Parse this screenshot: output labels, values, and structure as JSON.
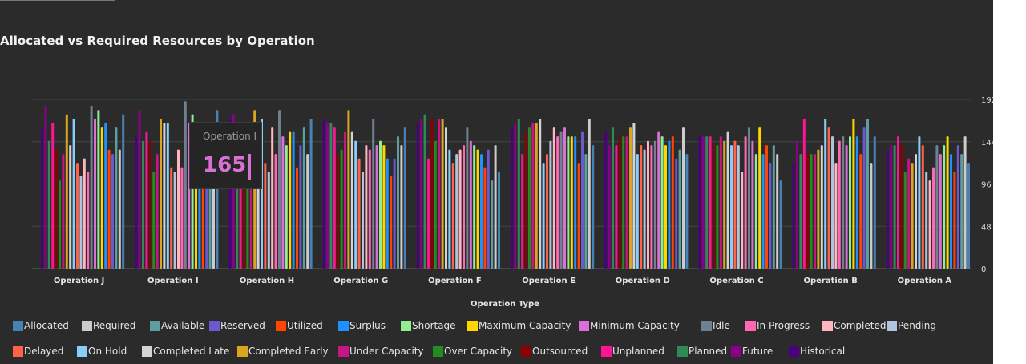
{
  "title": "Allocated vs Required Resources by Operation",
  "tooltip": {
    "label": "Operation I",
    "value": "165"
  },
  "colors": {
    "background": "#2b2b2b",
    "text": "#e6e6e6",
    "grid": "#444444",
    "tooltip_accent": "#d771d4"
  },
  "chart_data": {
    "type": "bar",
    "title": "Allocated vs Required Resources by Operation",
    "xlabel": "Operation Type",
    "ylabel": "",
    "ylim": [
      0,
      192
    ],
    "yticks": [
      0,
      48,
      96,
      144,
      192
    ],
    "grid": true,
    "legend_position": "bottom",
    "categories": [
      "Operation J",
      "Operation I",
      "Operation H",
      "Operation G",
      "Operation F",
      "Operation E",
      "Operation D",
      "Operation C",
      "Operation B",
      "Operation A"
    ],
    "series": [
      {
        "name": "Historical",
        "color": "#4b0082",
        "values": [
          160,
          150,
          170,
          170,
          165,
          160,
          155,
          150,
          120,
          135
        ]
      },
      {
        "name": "Future",
        "color": "#8b008b",
        "values": [
          185,
          180,
          175,
          165,
          170,
          165,
          140,
          150,
          145,
          140
        ]
      },
      {
        "name": "Planned",
        "color": "#2e8b57",
        "values": [
          145,
          145,
          160,
          165,
          175,
          170,
          160,
          150,
          130,
          140
        ]
      },
      {
        "name": "Unplanned",
        "color": "#ff1493",
        "values": [
          165,
          155,
          150,
          160,
          125,
          130,
          140,
          150,
          170,
          150
        ]
      },
      {
        "name": "Outsourced",
        "color": "#8b0000",
        "values": [
          135,
          145,
          140,
          130,
          170,
          155,
          150,
          140,
          130,
          140
        ]
      },
      {
        "name": "Over Capacity",
        "color": "#228b22",
        "values": [
          100,
          110,
          125,
          135,
          145,
          160,
          150,
          140,
          130,
          110
        ]
      },
      {
        "name": "Under Capacity",
        "color": "#c71585",
        "values": [
          130,
          130,
          130,
          155,
          170,
          165,
          150,
          150,
          130,
          125
        ]
      },
      {
        "name": "Completed Early",
        "color": "#daa520",
        "values": [
          175,
          170,
          180,
          180,
          170,
          165,
          160,
          145,
          135,
          120
        ]
      },
      {
        "name": "Completed Late",
        "color": "#d3d3d3",
        "values": [
          140,
          165,
          145,
          155,
          160,
          170,
          165,
          155,
          140,
          130
        ]
      },
      {
        "name": "On Hold",
        "color": "#87cefa",
        "values": [
          170,
          165,
          170,
          145,
          135,
          120,
          130,
          140,
          170,
          150
        ]
      },
      {
        "name": "Delayed",
        "color": "#ff6347",
        "values": [
          120,
          115,
          120,
          125,
          120,
          130,
          140,
          145,
          160,
          140
        ]
      },
      {
        "name": "Pending",
        "color": "#b0c4de",
        "values": [
          105,
          110,
          110,
          110,
          130,
          145,
          135,
          140,
          150,
          110
        ]
      },
      {
        "name": "Completed",
        "color": "#ffb6c1",
        "values": [
          125,
          135,
          160,
          140,
          135,
          160,
          145,
          110,
          120,
          100
        ]
      },
      {
        "name": "In Progress",
        "color": "#ff69b4",
        "values": [
          110,
          115,
          130,
          135,
          140,
          150,
          140,
          150,
          145,
          115
        ]
      },
      {
        "name": "Idle",
        "color": "#708090",
        "values": [
          185,
          190,
          180,
          170,
          160,
          155,
          145,
          160,
          150,
          140
        ]
      },
      {
        "name": "Minimum Capacity",
        "color": "#da70d6",
        "values": [
          170,
          165,
          150,
          140,
          145,
          160,
          155,
          145,
          140,
          130
        ]
      },
      {
        "name": "Shortage",
        "color": "#90ee90",
        "values": [
          180,
          175,
          140,
          145,
          140,
          150,
          150,
          130,
          150,
          140
        ]
      },
      {
        "name": "Maximum Capacity",
        "color": "#ffd700",
        "values": [
          160,
          160,
          155,
          140,
          135,
          150,
          140,
          160,
          170,
          150
        ]
      },
      {
        "name": "Surplus",
        "color": "#1e90ff",
        "values": [
          165,
          160,
          155,
          125,
          130,
          150,
          145,
          130,
          150,
          130
        ]
      },
      {
        "name": "Utilized",
        "color": "#ff4500",
        "values": [
          135,
          130,
          115,
          105,
          115,
          120,
          150,
          140,
          130,
          110
        ]
      },
      {
        "name": "Reserved",
        "color": "#6a5acd",
        "values": [
          130,
          125,
          140,
          125,
          135,
          155,
          125,
          120,
          160,
          140
        ]
      },
      {
        "name": "Available",
        "color": "#5f9ea0",
        "values": [
          160,
          150,
          160,
          150,
          100,
          130,
          135,
          140,
          170,
          130
        ]
      },
      {
        "name": "Required",
        "color": "#cccccc",
        "values": [
          135,
          140,
          130,
          140,
          140,
          170,
          160,
          130,
          120,
          150
        ]
      },
      {
        "name": "Allocated",
        "color": "#4682b4",
        "values": [
          175,
          180,
          170,
          160,
          110,
          140,
          130,
          100,
          150,
          120
        ]
      }
    ]
  },
  "legend_rows": [
    [
      {
        "name": "Allocated",
        "color": "#4682b4"
      },
      {
        "name": "Required",
        "color": "#cccccc"
      },
      {
        "name": "Available",
        "color": "#5f9ea0"
      },
      {
        "name": "Reserved",
        "color": "#6a5acd"
      },
      {
        "name": "Utilized",
        "color": "#ff4500"
      },
      {
        "name": "Surplus",
        "color": "#1e90ff"
      },
      {
        "name": "Shortage",
        "color": "#90ee90"
      },
      {
        "name": "Maximum Capacity",
        "color": "#ffd700"
      },
      {
        "name": "Minimum Capacity",
        "color": "#da70d6"
      },
      {
        "name": "Idle",
        "color": "#708090"
      },
      {
        "name": "In Progress",
        "color": "#ff69b4"
      },
      {
        "name": "Completed",
        "color": "#ffb6c1"
      },
      {
        "name": "Pending",
        "color": "#b0c4de"
      }
    ],
    [
      {
        "name": "Delayed",
        "color": "#ff6347"
      },
      {
        "name": "On Hold",
        "color": "#87cefa"
      },
      {
        "name": "Completed Late",
        "color": "#d3d3d3"
      },
      {
        "name": "Completed Early",
        "color": "#daa520"
      },
      {
        "name": "Under Capacity",
        "color": "#c71585"
      },
      {
        "name": "Over Capacity",
        "color": "#228b22"
      },
      {
        "name": "Outsourced",
        "color": "#8b0000"
      },
      {
        "name": "Unplanned",
        "color": "#ff1493"
      },
      {
        "name": "Planned",
        "color": "#2e8b57"
      },
      {
        "name": "Future",
        "color": "#8b008b"
      },
      {
        "name": "Historical",
        "color": "#4b0082"
      }
    ]
  ]
}
